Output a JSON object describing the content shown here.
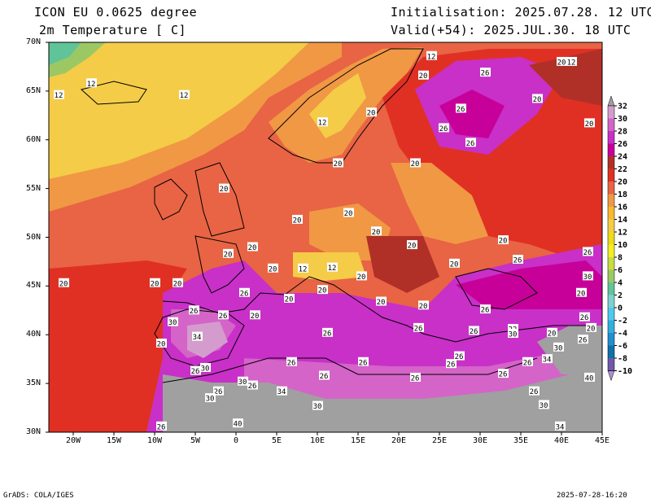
{
  "header": {
    "model": "ICON EU 0.0625 degree",
    "field": "2m Temperature [ C]",
    "init": "Initialisation: 2025.07.28. 12 UTC",
    "valid": "Valid(+54): 2025.JUL.30. 18 UTC"
  },
  "axes": {
    "lat_labels": [
      "70N",
      "65N",
      "60N",
      "55N",
      "50N",
      "45N",
      "40N",
      "35N",
      "30N"
    ],
    "lon_labels": [
      "20W",
      "15W",
      "10W",
      "5W",
      "0",
      "5E",
      "10E",
      "15E",
      "20E",
      "25E",
      "30E",
      "35E",
      "40E",
      "45E"
    ]
  },
  "colorbar": {
    "levels": [
      "32",
      "30",
      "28",
      "26",
      "24",
      "22",
      "20",
      "18",
      "16",
      "14",
      "12",
      "10",
      "8",
      "6",
      "4",
      "2",
      "0",
      "-2",
      "-4",
      "-6",
      "-8",
      "-10"
    ],
    "colors": [
      "#a0a0a0",
      "#d49ccc",
      "#d464c8",
      "#c830c8",
      "#c8009a",
      "#b03028",
      "#e03024",
      "#e86444",
      "#f09844",
      "#f8b830",
      "#f4cc48",
      "#ecdc18",
      "#f4ec28",
      "#c8dc40",
      "#9cc864",
      "#60c498",
      "#80d0d0",
      "#50c8ec",
      "#30b0dc",
      "#2090d0",
      "#1070a8",
      "#7058a8",
      "#b090d0"
    ]
  },
  "contour_labels": [
    {
      "t": "12",
      "lon": 24,
      "lat": 68.6
    },
    {
      "t": "20",
      "lon": 40,
      "lat": 68
    },
    {
      "t": "12",
      "lon": 41.2,
      "lat": 68
    },
    {
      "t": "12",
      "lon": -17.8,
      "lat": 65.8
    },
    {
      "t": "12",
      "lon": -21.8,
      "lat": 64.6
    },
    {
      "t": "12",
      "lon": -6.4,
      "lat": 64.6
    },
    {
      "t": "20",
      "lon": 23,
      "lat": 66.6
    },
    {
      "t": "26",
      "lon": 30.6,
      "lat": 66.9
    },
    {
      "t": "20",
      "lon": 37,
      "lat": 64.2
    },
    {
      "t": "26",
      "lon": 27.6,
      "lat": 63.2
    },
    {
      "t": "20",
      "lon": 16.6,
      "lat": 62.8
    },
    {
      "t": "12",
      "lon": 10.6,
      "lat": 61.8
    },
    {
      "t": "26",
      "lon": 25.5,
      "lat": 61.2
    },
    {
      "t": "26",
      "lon": 28.8,
      "lat": 59.7
    },
    {
      "t": "20",
      "lon": 43.4,
      "lat": 61.7
    },
    {
      "t": "20",
      "lon": 12.5,
      "lat": 57.6
    },
    {
      "t": "20",
      "lon": 22,
      "lat": 57.6
    },
    {
      "t": "20",
      "lon": -1.5,
      "lat": 55
    },
    {
      "t": "20",
      "lon": 13.8,
      "lat": 52.5
    },
    {
      "t": "20",
      "lon": 7.5,
      "lat": 51.8
    },
    {
      "t": "20",
      "lon": 17.2,
      "lat": 50.6
    },
    {
      "t": "20",
      "lon": 32.8,
      "lat": 49.7
    },
    {
      "t": "20",
      "lon": 2,
      "lat": 49
    },
    {
      "t": "20",
      "lon": 21.6,
      "lat": 49.2
    },
    {
      "t": "20",
      "lon": -1,
      "lat": 48.3
    },
    {
      "t": "20",
      "lon": 26.8,
      "lat": 47.3
    },
    {
      "t": "26",
      "lon": 34.6,
      "lat": 47.7
    },
    {
      "t": "26",
      "lon": 43.2,
      "lat": 48.5
    },
    {
      "t": "20",
      "lon": 4.5,
      "lat": 46.8
    },
    {
      "t": "12",
      "lon": 8.2,
      "lat": 46.8
    },
    {
      "t": "12",
      "lon": 11.8,
      "lat": 46.9
    },
    {
      "t": "20",
      "lon": 15.4,
      "lat": 46
    },
    {
      "t": "30",
      "lon": 43.2,
      "lat": 46
    },
    {
      "t": "20",
      "lon": -21.2,
      "lat": 45.3
    },
    {
      "t": "20",
      "lon": -10,
      "lat": 45.3
    },
    {
      "t": "20",
      "lon": -7.2,
      "lat": 45.3
    },
    {
      "t": "20",
      "lon": 10.6,
      "lat": 44.6
    },
    {
      "t": "26",
      "lon": 1,
      "lat": 44.3
    },
    {
      "t": "20",
      "lon": 6.5,
      "lat": 43.7
    },
    {
      "t": "20",
      "lon": 17.8,
      "lat": 43.4
    },
    {
      "t": "20",
      "lon": 23,
      "lat": 43
    },
    {
      "t": "20",
      "lon": 42.4,
      "lat": 44.3
    },
    {
      "t": "26",
      "lon": -5.2,
      "lat": 42.5
    },
    {
      "t": "26",
      "lon": -1.6,
      "lat": 42
    },
    {
      "t": "20",
      "lon": 2.3,
      "lat": 42
    },
    {
      "t": "26",
      "lon": 30.6,
      "lat": 42.6
    },
    {
      "t": "26",
      "lon": 42.8,
      "lat": 41.8
    },
    {
      "t": "20",
      "lon": 43.6,
      "lat": 40.7
    },
    {
      "t": "30",
      "lon": -7.8,
      "lat": 41.3
    },
    {
      "t": "34",
      "lon": -4.8,
      "lat": 39.8
    },
    {
      "t": "26",
      "lon": 11.2,
      "lat": 40.2
    },
    {
      "t": "26",
      "lon": 22.4,
      "lat": 40.7
    },
    {
      "t": "26",
      "lon": 29.2,
      "lat": 40.4
    },
    {
      "t": "22",
      "lon": 34,
      "lat": 40.6
    },
    {
      "t": "30",
      "lon": 34,
      "lat": 40.1
    },
    {
      "t": "20",
      "lon": 38.8,
      "lat": 40.2
    },
    {
      "t": "26",
      "lon": 42.6,
      "lat": 39.5
    },
    {
      "t": "20",
      "lon": -9.2,
      "lat": 39.1
    },
    {
      "t": "30",
      "lon": 39.6,
      "lat": 38.7
    },
    {
      "t": "26",
      "lon": 27.4,
      "lat": 37.8
    },
    {
      "t": "26",
      "lon": 6.8,
      "lat": 37.2
    },
    {
      "t": "26",
      "lon": 15.6,
      "lat": 37.2
    },
    {
      "t": "26",
      "lon": 26.4,
      "lat": 37
    },
    {
      "t": "26",
      "lon": 35.8,
      "lat": 37.2
    },
    {
      "t": "34",
      "lon": 38.2,
      "lat": 37.5
    },
    {
      "t": "30",
      "lon": -3.8,
      "lat": 36.6
    },
    {
      "t": "26",
      "lon": -5,
      "lat": 36.3
    },
    {
      "t": "26",
      "lon": 32.8,
      "lat": 36
    },
    {
      "t": "26",
      "lon": 10.8,
      "lat": 35.8
    },
    {
      "t": "26",
      "lon": 22,
      "lat": 35.6
    },
    {
      "t": "40",
      "lon": 43.4,
      "lat": 35.6
    },
    {
      "t": "30",
      "lon": 0.8,
      "lat": 35.2
    },
    {
      "t": "26",
      "lon": 2,
      "lat": 34.8
    },
    {
      "t": "26",
      "lon": -2.2,
      "lat": 34.2
    },
    {
      "t": "30",
      "lon": -3.2,
      "lat": 33.5
    },
    {
      "t": "34",
      "lon": 5.6,
      "lat": 34.2
    },
    {
      "t": "26",
      "lon": 36.6,
      "lat": 34.2
    },
    {
      "t": "30",
      "lon": 10,
      "lat": 32.7
    },
    {
      "t": "30",
      "lon": 37.8,
      "lat": 32.8
    },
    {
      "t": "26",
      "lon": -9.2,
      "lat": 30.6
    },
    {
      "t": "40",
      "lon": 0.2,
      "lat": 30.9
    },
    {
      "t": "34",
      "lon": 39.8,
      "lat": 30.6
    }
  ],
  "footer": {
    "left": "GrADS: COLA/IGES",
    "right": "2025-07-28-16:20"
  }
}
